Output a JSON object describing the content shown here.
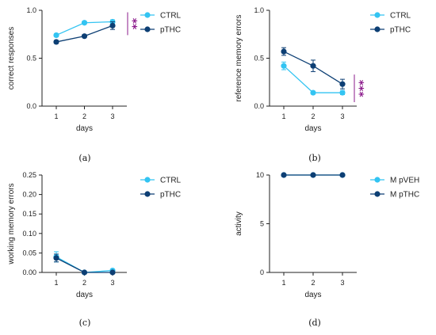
{
  "chart_data": [
    {
      "type": "line",
      "panel": "(a)",
      "xlabel": "days",
      "ylabel": "correct responses",
      "x": [
        1,
        2,
        3
      ],
      "xticks": [
        "1",
        "2",
        "3"
      ],
      "ylim": [
        0,
        1.0
      ],
      "yticks": [
        "0.0",
        "0.5",
        "1.0"
      ],
      "legend_position": "top-right",
      "series": [
        {
          "name": "CTRL",
          "color": "#33c4f2",
          "values": [
            0.74,
            0.87,
            0.88
          ],
          "err": [
            0.015,
            0.015,
            0.02
          ]
        },
        {
          "name": "pTHC",
          "color": "#0d3f74",
          "values": [
            0.67,
            0.73,
            0.84
          ],
          "err": [
            0.015,
            0.015,
            0.04
          ]
        }
      ],
      "significance": "**"
    },
    {
      "type": "line",
      "panel": "(b)",
      "xlabel": "days",
      "ylabel": "reference memory errors",
      "x": [
        1,
        2,
        3
      ],
      "xticks": [
        "1",
        "2",
        "3"
      ],
      "ylim": [
        0,
        1.0
      ],
      "yticks": [
        "0.0",
        "0.5",
        "1.0"
      ],
      "legend_position": "top-right",
      "series": [
        {
          "name": "CTRL",
          "color": "#33c4f2",
          "values": [
            0.42,
            0.14,
            0.14
          ],
          "err": [
            0.04,
            0.01,
            0.02
          ]
        },
        {
          "name": "pTHC",
          "color": "#0d3f74",
          "values": [
            0.57,
            0.42,
            0.23
          ],
          "err": [
            0.04,
            0.06,
            0.05
          ]
        }
      ],
      "significance": "***"
    },
    {
      "type": "line",
      "panel": "(c)",
      "xlabel": "days",
      "ylabel": "working memory errors",
      "x": [
        1,
        2,
        3
      ],
      "xticks": [
        "1",
        "2",
        "3"
      ],
      "ylim": [
        0,
        0.25
      ],
      "yticks": [
        "0.00",
        "0.05",
        "0.10",
        "0.15",
        "0.20",
        "0.25"
      ],
      "legend_position": "top-right",
      "series": [
        {
          "name": "CTRL",
          "color": "#33c4f2",
          "values": [
            0.04,
            0.0,
            0.005
          ],
          "err": [
            0.013,
            0.0,
            0.003
          ]
        },
        {
          "name": "pTHC",
          "color": "#0d3f74",
          "values": [
            0.037,
            0.0,
            0.0
          ],
          "err": [
            0.01,
            0.0,
            0.0
          ]
        }
      ],
      "significance": ""
    },
    {
      "type": "line",
      "panel": "(d)",
      "xlabel": "days",
      "ylabel": "activity",
      "x": [
        1,
        2,
        3
      ],
      "xticks": [
        "1",
        "2",
        "3"
      ],
      "ylim": [
        0,
        10
      ],
      "yticks": [
        "0",
        "5",
        "10"
      ],
      "legend_position": "top-right",
      "series": [
        {
          "name": "M pVEH",
          "color": "#33c4f2",
          "values": [
            10,
            10,
            10
          ],
          "err": [
            0,
            0,
            0
          ]
        },
        {
          "name": "M pTHC",
          "color": "#0d3f74",
          "values": [
            10,
            10,
            10
          ],
          "err": [
            0,
            0,
            0
          ]
        }
      ],
      "significance": ""
    }
  ]
}
